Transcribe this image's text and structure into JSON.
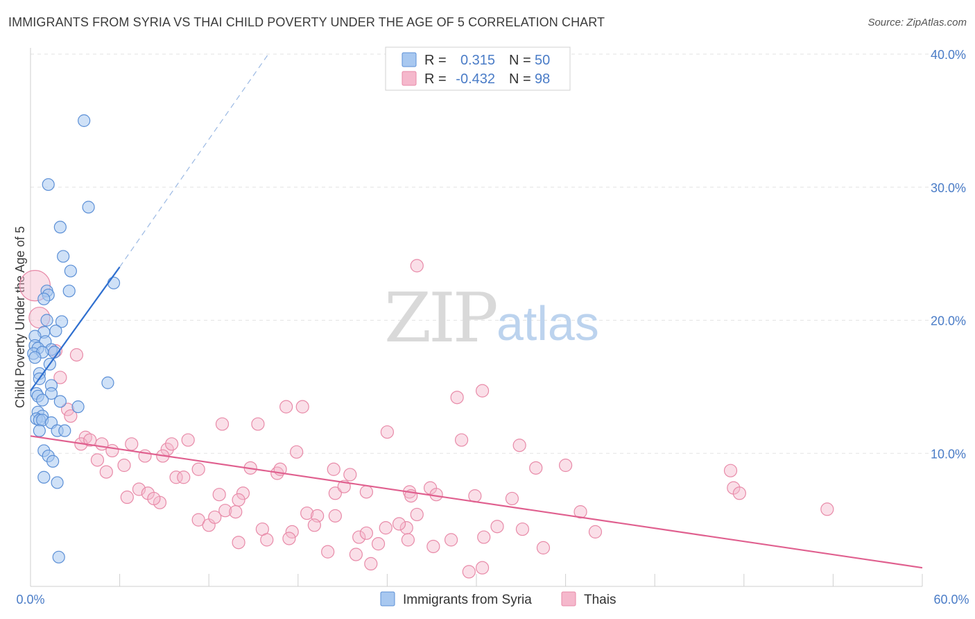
{
  "title": "IMMIGRANTS FROM SYRIA VS THAI CHILD POVERTY UNDER THE AGE OF 5 CORRELATION CHART",
  "source": "Source: ZipAtlas.com",
  "watermark": {
    "zip": "ZIP",
    "atlas": "atlas"
  },
  "colors": {
    "syria_fill": "#a8c8f0",
    "syria_stroke": "#5b8fd6",
    "syria_line": "#2f6fcf",
    "thai_fill": "#f5b8cc",
    "thai_stroke": "#e88aa8",
    "thai_line": "#e0608f",
    "tick": "#4a7cc7",
    "grid": "#e3e3e3"
  },
  "legend": {
    "r_label": "R =",
    "n_label": "N =",
    "rows": [
      {
        "series": "syria",
        "r": "0.315",
        "n": "50"
      },
      {
        "series": "thai",
        "r": "-0.432",
        "n": "98"
      }
    ]
  },
  "bottom_legend": [
    {
      "series": "syria",
      "label": "Immigrants from Syria"
    },
    {
      "series": "thai",
      "label": "Thais"
    }
  ],
  "chart_data": {
    "type": "scatter",
    "title": "IMMIGRANTS FROM SYRIA VS THAI CHILD POVERTY UNDER THE AGE OF 5 CORRELATION CHART",
    "xlabel": "",
    "ylabel": "Child Poverty Under the Age of 5",
    "xlim": [
      0,
      60
    ],
    "ylim": [
      0,
      40
    ],
    "x_tick_labels": [
      "0.0%",
      "60.0%"
    ],
    "y_ticks": [
      10,
      20,
      30,
      40
    ],
    "y_tick_labels": [
      "10.0%",
      "20.0%",
      "30.0%",
      "40.0%"
    ],
    "grid": true,
    "legend_position": "top-center",
    "series": [
      {
        "name": "Immigrants from Syria",
        "key": "syria",
        "r": 0.315,
        "n": 50,
        "trend": {
          "x0": 0,
          "y0": 14.7,
          "x1": 6.0,
          "y1": 24.0,
          "dashed_to": {
            "x": 16.0,
            "y": 40.0
          }
        },
        "points": [
          [
            3.6,
            35.0
          ],
          [
            1.2,
            30.2
          ],
          [
            3.9,
            28.5
          ],
          [
            2.0,
            27.0
          ],
          [
            2.2,
            24.8
          ],
          [
            2.7,
            23.7
          ],
          [
            5.6,
            22.8
          ],
          [
            1.1,
            22.2
          ],
          [
            2.6,
            22.2
          ],
          [
            1.2,
            21.9
          ],
          [
            0.9,
            21.6
          ],
          [
            1.1,
            20.0
          ],
          [
            2.1,
            19.9
          ],
          [
            0.9,
            19.1
          ],
          [
            1.7,
            19.2
          ],
          [
            0.3,
            18.8
          ],
          [
            1.0,
            18.4
          ],
          [
            0.3,
            18.1
          ],
          [
            0.5,
            17.9
          ],
          [
            1.4,
            17.8
          ],
          [
            0.2,
            17.5
          ],
          [
            0.8,
            17.6
          ],
          [
            1.6,
            17.6
          ],
          [
            0.3,
            17.2
          ],
          [
            1.3,
            16.7
          ],
          [
            0.6,
            16.0
          ],
          [
            0.6,
            15.6
          ],
          [
            5.2,
            15.3
          ],
          [
            1.4,
            15.1
          ],
          [
            0.4,
            14.5
          ],
          [
            1.4,
            14.5
          ],
          [
            0.5,
            14.3
          ],
          [
            0.8,
            14.0
          ],
          [
            2.0,
            13.9
          ],
          [
            3.2,
            13.5
          ],
          [
            0.5,
            13.1
          ],
          [
            0.8,
            12.8
          ],
          [
            0.4,
            12.6
          ],
          [
            0.6,
            12.5
          ],
          [
            0.8,
            12.5
          ],
          [
            1.4,
            12.3
          ],
          [
            0.6,
            11.7
          ],
          [
            1.8,
            11.7
          ],
          [
            2.3,
            11.7
          ],
          [
            0.9,
            10.2
          ],
          [
            1.2,
            9.8
          ],
          [
            1.5,
            9.4
          ],
          [
            0.9,
            8.2
          ],
          [
            1.8,
            7.8
          ],
          [
            1.9,
            2.2
          ]
        ]
      },
      {
        "name": "Thais",
        "key": "thai",
        "r": -0.432,
        "n": 98,
        "trend": {
          "x0": 0,
          "y0": 11.3,
          "x1": 60,
          "y1": 1.4
        },
        "points": [
          [
            0.3,
            22.6,
            "xl"
          ],
          [
            0.6,
            20.2,
            "l"
          ],
          [
            1.7,
            17.7,
            "m"
          ],
          [
            3.1,
            17.4,
            "m"
          ],
          [
            2.0,
            15.7,
            "m"
          ],
          [
            2.5,
            13.3,
            "m"
          ],
          [
            2.7,
            12.8,
            "m"
          ],
          [
            3.7,
            11.2,
            "m"
          ],
          [
            3.4,
            10.7,
            "m"
          ],
          [
            4.0,
            11.0,
            "m"
          ],
          [
            4.8,
            10.7,
            "m"
          ],
          [
            5.5,
            10.2,
            "m"
          ],
          [
            6.8,
            10.7,
            "m"
          ],
          [
            7.7,
            9.8,
            "m"
          ],
          [
            4.5,
            9.5,
            "m"
          ],
          [
            5.1,
            8.6,
            "m"
          ],
          [
            6.3,
            9.1,
            "m"
          ],
          [
            9.2,
            10.3,
            "m"
          ],
          [
            9.5,
            10.7,
            "m"
          ],
          [
            10.6,
            11.0,
            "m"
          ],
          [
            8.9,
            9.8,
            "m"
          ],
          [
            9.8,
            8.2,
            "m"
          ],
          [
            10.3,
            8.2,
            "m"
          ],
          [
            11.3,
            8.8,
            "m"
          ],
          [
            12.9,
            12.2,
            "m"
          ],
          [
            15.3,
            12.2,
            "m"
          ],
          [
            17.2,
            13.5,
            "m"
          ],
          [
            18.3,
            13.5,
            "m"
          ],
          [
            17.9,
            10.1,
            "m"
          ],
          [
            14.8,
            8.9,
            "m"
          ],
          [
            16.6,
            8.5,
            "m"
          ],
          [
            16.8,
            8.8,
            "m"
          ],
          [
            20.4,
            8.8,
            "m"
          ],
          [
            21.5,
            8.4,
            "m"
          ],
          [
            22.6,
            7.1,
            "m"
          ],
          [
            20.5,
            7.0,
            "m"
          ],
          [
            21.1,
            7.5,
            "m"
          ],
          [
            25.5,
            7.1,
            "m"
          ],
          [
            26.0,
            24.1,
            "m"
          ],
          [
            24.0,
            11.6,
            "m"
          ],
          [
            28.7,
            14.2,
            "m"
          ],
          [
            30.4,
            14.7,
            "m"
          ],
          [
            29.0,
            11.0,
            "m"
          ],
          [
            32.9,
            10.6,
            "m"
          ],
          [
            34.0,
            8.9,
            "m"
          ],
          [
            36.0,
            9.1,
            "m"
          ],
          [
            26.9,
            7.4,
            "m"
          ],
          [
            27.3,
            6.9,
            "m"
          ],
          [
            29.9,
            6.8,
            "m"
          ],
          [
            32.4,
            6.6,
            "m"
          ],
          [
            6.5,
            6.7,
            "m"
          ],
          [
            7.3,
            7.3,
            "m"
          ],
          [
            7.9,
            7.0,
            "m"
          ],
          [
            8.7,
            6.3,
            "m"
          ],
          [
            8.3,
            6.6,
            "m"
          ],
          [
            12.7,
            6.9,
            "m"
          ],
          [
            14.3,
            7.0,
            "m"
          ],
          [
            14.0,
            6.5,
            "m"
          ],
          [
            11.3,
            5.0,
            "m"
          ],
          [
            12.0,
            4.6,
            "m"
          ],
          [
            12.4,
            5.2,
            "m"
          ],
          [
            13.1,
            5.7,
            "m"
          ],
          [
            13.8,
            5.6,
            "m"
          ],
          [
            18.6,
            5.5,
            "m"
          ],
          [
            19.3,
            5.3,
            "m"
          ],
          [
            20.5,
            5.3,
            "m"
          ],
          [
            19.1,
            4.6,
            "m"
          ],
          [
            15.6,
            4.3,
            "m"
          ],
          [
            17.6,
            4.1,
            "m"
          ],
          [
            17.4,
            3.6,
            "m"
          ],
          [
            15.9,
            3.5,
            "m"
          ],
          [
            14.0,
            3.3,
            "m"
          ],
          [
            22.1,
            3.7,
            "m"
          ],
          [
            22.6,
            4.0,
            "m"
          ],
          [
            23.4,
            3.2,
            "m"
          ],
          [
            23.9,
            4.4,
            "m"
          ],
          [
            25.3,
            4.4,
            "m"
          ],
          [
            26.0,
            5.4,
            "m"
          ],
          [
            25.4,
            3.5,
            "m"
          ],
          [
            27.1,
            3.0,
            "m"
          ],
          [
            28.3,
            3.5,
            "m"
          ],
          [
            20.0,
            2.6,
            "m"
          ],
          [
            21.9,
            2.4,
            "m"
          ],
          [
            22.9,
            1.7,
            "m"
          ],
          [
            30.5,
            3.7,
            "m"
          ],
          [
            31.4,
            4.5,
            "m"
          ],
          [
            33.1,
            4.3,
            "m"
          ],
          [
            34.5,
            2.9,
            "m"
          ],
          [
            37.0,
            5.6,
            "m"
          ],
          [
            38.0,
            4.1,
            "m"
          ],
          [
            29.5,
            1.1,
            "m"
          ],
          [
            30.4,
            1.4,
            "m"
          ],
          [
            47.1,
            8.7,
            "m"
          ],
          [
            47.3,
            7.4,
            "m"
          ],
          [
            47.7,
            7.0,
            "m"
          ],
          [
            53.6,
            5.8,
            "m"
          ],
          [
            24.8,
            4.7,
            "m"
          ],
          [
            25.6,
            6.8,
            "m"
          ]
        ]
      }
    ]
  }
}
